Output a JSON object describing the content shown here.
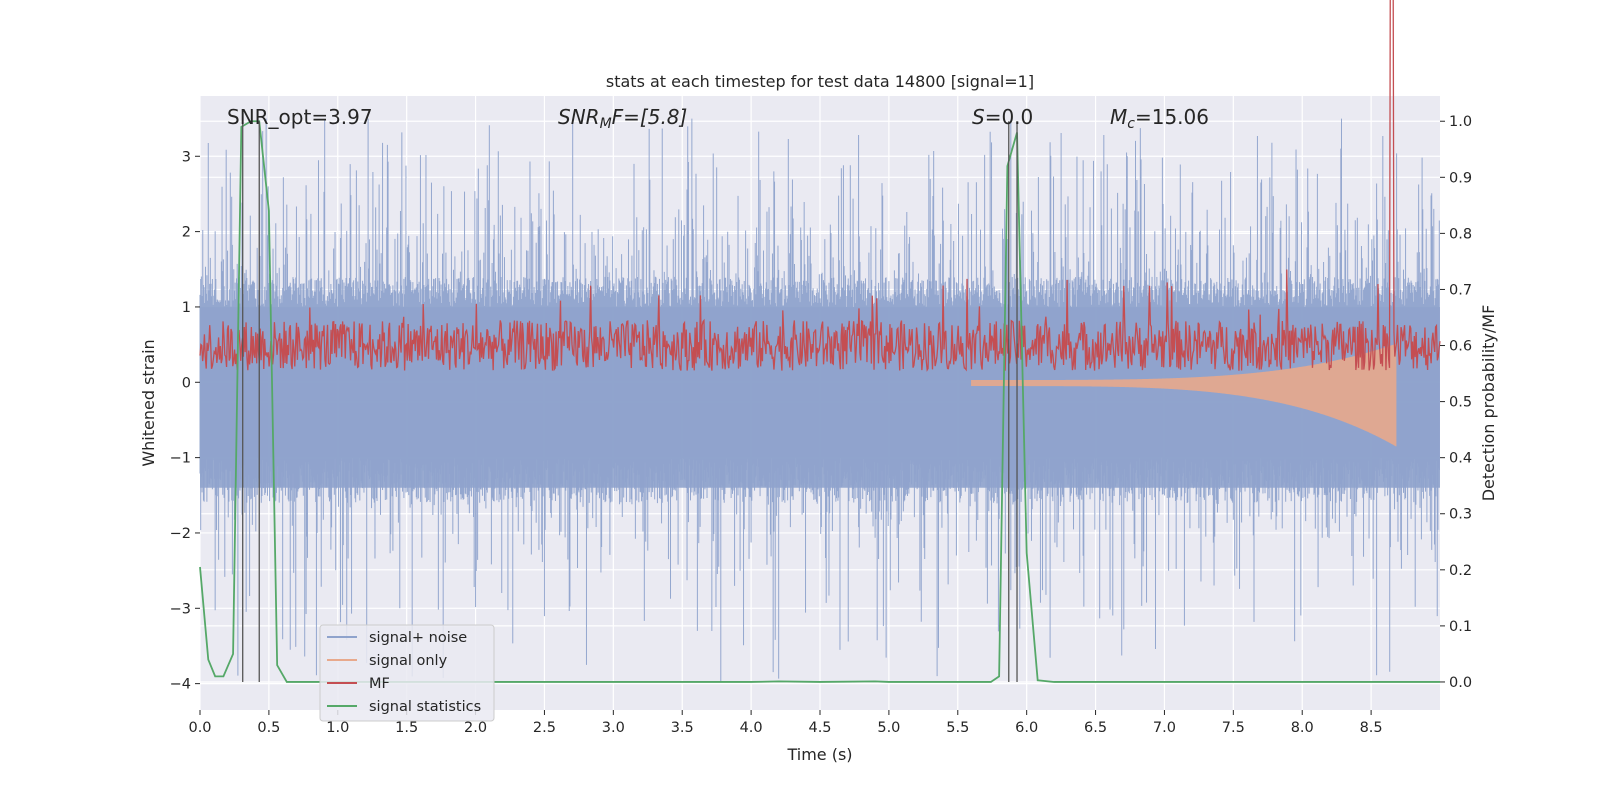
{
  "chart_data": {
    "type": "line",
    "title": "stats at each timestep for test data 14800 [signal=1]",
    "xlabel": "Time (s)",
    "ylabel_left": "Whitened strain",
    "ylabel_right": "Detection probability/MF",
    "xlim": [
      0.0,
      9.0
    ],
    "ylim_left": [
      -4.35,
      3.8
    ],
    "ylim_right": [
      -0.05,
      1.045
    ],
    "x_ticks": [
      "0.0",
      "0.5",
      "1.0",
      "1.5",
      "2.0",
      "2.5",
      "3.0",
      "3.5",
      "4.0",
      "4.5",
      "5.0",
      "5.5",
      "6.0",
      "6.5",
      "7.0",
      "7.5",
      "8.0",
      "8.5"
    ],
    "y_ticks_left": [
      "3",
      "2",
      "1",
      "0",
      "−1",
      "−2",
      "−3",
      "−4"
    ],
    "y_ticks_right": [
      "1.0",
      "0.9",
      "0.8",
      "0.7",
      "0.6",
      "0.5",
      "0.4",
      "0.3",
      "0.2",
      "0.1",
      "0.0"
    ],
    "grid": true,
    "legend_position": "lower-left",
    "annotations": {
      "snr_opt": "SNR_opt=3.97",
      "snr_mf_main": "SNR",
      "snr_mf_sub": "M",
      "snr_mf_rest": "F=[5.8]",
      "s_main": "S",
      "s_rest": "=0.0",
      "mc_main": "M",
      "mc_sub": "c",
      "mc_rest": "=15.06"
    },
    "vertical_lines_x": [
      0.31,
      0.43,
      5.87,
      5.93
    ],
    "series": [
      {
        "name": "signal+ noise",
        "color": "#8fa3cc",
        "description_values": {
          "noise_sigma": 0.9,
          "peaks_max": 3.5,
          "peaks_min": -4.0
        }
      },
      {
        "name": "signal only",
        "color": "#e8a98c",
        "chirp_end_x": 8.68,
        "chirp_start_x": 5.6,
        "final_amplitude": 0.8
      },
      {
        "name": "MF",
        "color": "#c44e52",
        "baseline": 0.2,
        "spike_x": 8.65,
        "spike_value": 0.95
      },
      {
        "name": "signal statistics",
        "color": "#55a868",
        "x": [
          0.0,
          0.06,
          0.11,
          0.17,
          0.24,
          0.3,
          0.37,
          0.43,
          0.5,
          0.56,
          0.63,
          0.7,
          0.8,
          1.0,
          2.0,
          3.0,
          4.0,
          4.2,
          4.5,
          4.9,
          5.0,
          5.5,
          5.74,
          5.8,
          5.86,
          5.93,
          6.0,
          6.08,
          6.2,
          7.0,
          8.0,
          9.0
        ],
        "values": [
          0.205,
          0.04,
          0.01,
          0.01,
          0.05,
          0.99,
          1.0,
          1.0,
          0.84,
          0.03,
          0.0,
          0.0,
          0.0,
          0.0,
          0.0,
          0.0,
          0.0,
          0.001,
          0.0,
          0.001,
          0.0,
          0.0,
          0.0,
          0.01,
          0.92,
          0.98,
          0.23,
          0.003,
          0.0,
          0.0,
          0.0,
          0.0
        ]
      }
    ]
  }
}
